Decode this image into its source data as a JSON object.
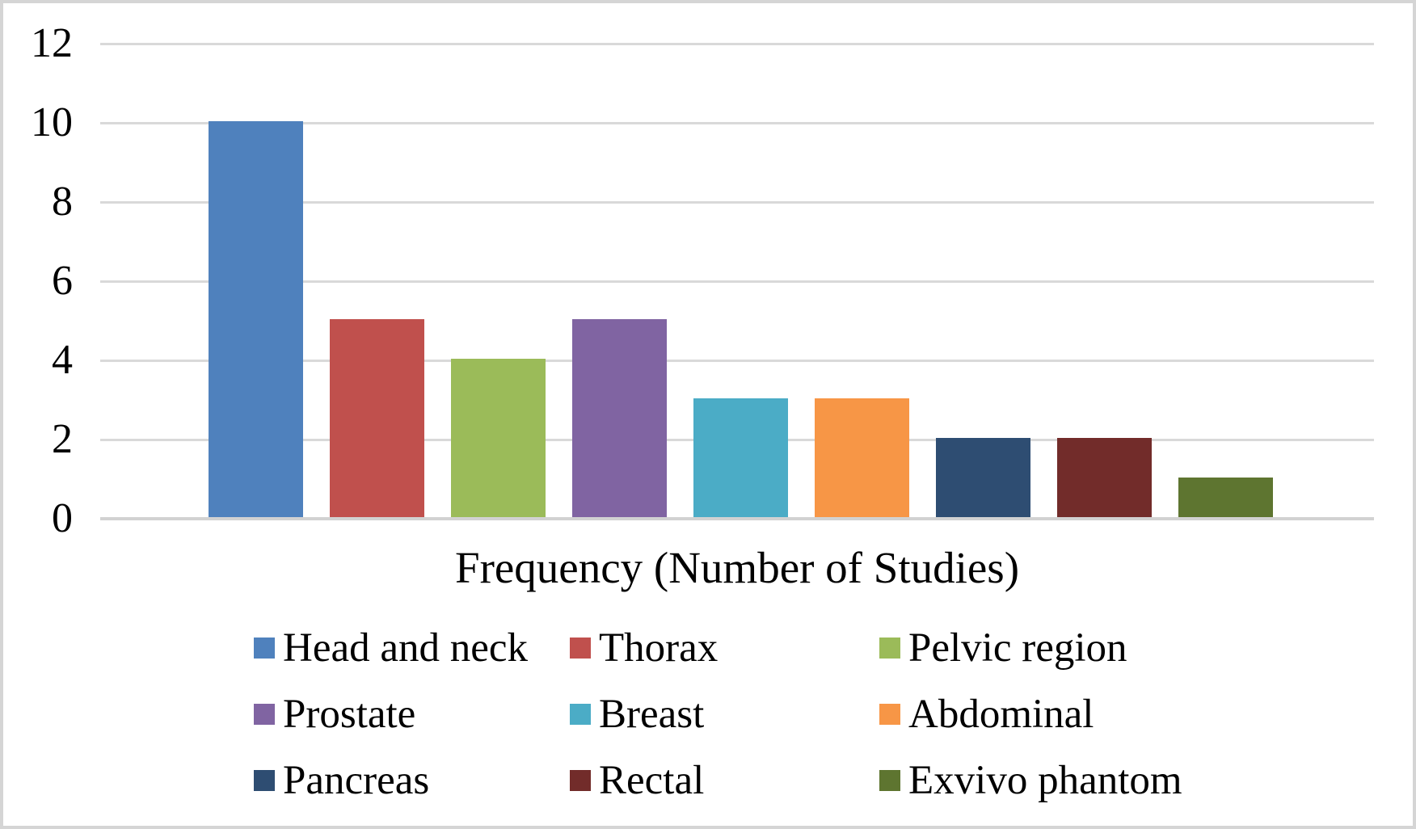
{
  "chart_data": {
    "type": "bar",
    "title": "",
    "xlabel": "Frequency (Number of Studies)",
    "ylabel": "",
    "ylim": [
      0,
      12
    ],
    "yticks": [
      0,
      2,
      4,
      6,
      8,
      10,
      12
    ],
    "grid": true,
    "legend_position": "bottom",
    "categories": [
      "Head and neck",
      "Thorax",
      "Pelvic region",
      "Prostate",
      "Breast",
      "Abdominal",
      "Pancreas",
      "Rectal",
      "Exvivo phantom"
    ],
    "values": [
      10,
      5,
      4,
      5,
      3,
      3,
      2,
      2,
      1
    ],
    "colors": [
      "#4F81BD",
      "#C0504D",
      "#9BBB59",
      "#8064A2",
      "#4BACC6",
      "#F79646",
      "#2E4D72",
      "#722C2A",
      "#5E7530"
    ]
  },
  "style_colors": {
    "gridline": "#D9D9D9",
    "axis_line": "#D2D2D2",
    "text": "#000000",
    "background": "#FFFFFF",
    "figure_border": "#D5D5D5"
  }
}
